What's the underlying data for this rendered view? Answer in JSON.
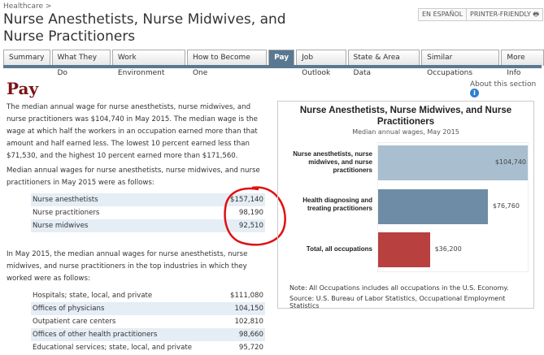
{
  "breadcrumb": "Healthcare >",
  "title": "Nurse Anesthetists, Nurse Midwives, and Nurse Practitioners",
  "buttons": {
    "espanol": "EN ESPAÑOL",
    "printer": "PRINTER-FRIENDLY"
  },
  "tabs": [
    {
      "label": "Summary"
    },
    {
      "label": "What They Do"
    },
    {
      "label": "Work Environment"
    },
    {
      "label": "How to Become One"
    },
    {
      "label": "Pay",
      "active": true
    },
    {
      "label": "Job Outlook"
    },
    {
      "label": "State & Area Data"
    },
    {
      "label": "Similar Occupations"
    },
    {
      "label": "More Info"
    }
  ],
  "section": {
    "heading": "Pay",
    "about": "About this section"
  },
  "para1": "The median annual wage for nurse anesthetists, nurse midwives, and nurse practitioners was $104,740 in May 2015. The median wage is the wage at which half the workers in an occupation earned more than that amount and half earned less. The lowest 10 percent earned less than $71,530, and the highest 10 percent earned more than $171,560.",
  "para2": "Median annual wages for nurse anesthetists, nurse midwives, and nurse practitioners in May 2015 were as follows:",
  "wages": [
    {
      "label": "Nurse anesthetists",
      "value": "$157,140"
    },
    {
      "label": "Nurse practitioners",
      "value": "98,190"
    },
    {
      "label": "Nurse midwives",
      "value": "92,510"
    }
  ],
  "para3": "In May 2015, the median annual wages for nurse anesthetists, nurse midwives, and nurse practitioners in the top industries in which they worked were as follows:",
  "industries": [
    {
      "label": "Hospitals; state, local, and private",
      "value": "$111,080"
    },
    {
      "label": "Offices of physicians",
      "value": "104,150"
    },
    {
      "label": "Outpatient care centers",
      "value": "102,810"
    },
    {
      "label": "Offices of other health practitioners",
      "value": "98,660"
    },
    {
      "label": "Educational services; state, local, and private",
      "value": "95,720"
    }
  ],
  "annotation_color": "#e01010",
  "chart_data": {
    "type": "bar",
    "orientation": "horizontal",
    "title": "Nurse Anesthetists, Nurse Midwives, and Nurse Practitioners",
    "subtitle": "Median annual wages, May 2015",
    "categories": [
      "Nurse anesthetists, nurse midwives, and nurse practitioners",
      "Health diagnosing and treating practitioners",
      "Total, all occupations"
    ],
    "values": [
      104740,
      76760,
      36200
    ],
    "labels": [
      "$104,740",
      "$76,760",
      "$36,200"
    ],
    "colors": [
      "#a9bfcf",
      "#6e8ca6",
      "#b8403f"
    ],
    "xlim": [
      0,
      104740
    ],
    "note": "Note: All Occupations includes all occupations in the U.S. Economy.",
    "source": "Source: U.S. Bureau of Labor Statistics, Occupational Employment Statistics"
  }
}
